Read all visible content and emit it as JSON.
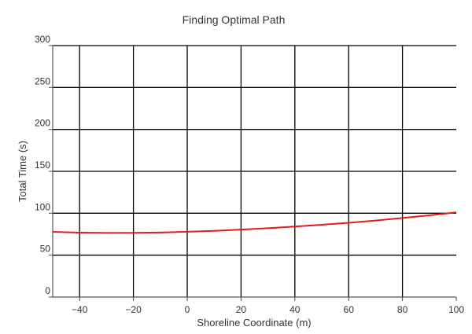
{
  "chart_data": {
    "type": "line",
    "title": "Finding Optimal Path",
    "xlabel": "Shoreline Coordinate (m)",
    "ylabel": "Total Time (s)",
    "xlim": [
      -50,
      100
    ],
    "ylim": [
      0,
      300
    ],
    "x_ticks": [
      -40,
      -20,
      0,
      20,
      40,
      60,
      80,
      100
    ],
    "y_ticks": [
      0,
      50,
      100,
      150,
      200,
      250,
      300
    ],
    "x_tick_labels": [
      "−40",
      "−20",
      "0",
      "20",
      "40",
      "60",
      "80",
      "100"
    ],
    "y_tick_labels": [
      "0",
      "50",
      "100",
      "150",
      "200",
      "250",
      "300"
    ],
    "grid": true,
    "grid_color": "#000000",
    "series": [
      {
        "color": "#e41a1c",
        "x": [
          -50,
          -40,
          -30,
          -20,
          -10,
          0,
          10,
          20,
          30,
          40,
          50,
          60,
          70,
          80,
          90,
          100
        ],
        "y": [
          77.8,
          76.9,
          76.5,
          76.6,
          77.0,
          77.9,
          79.0,
          80.5,
          82.2,
          84.1,
          86.3,
          88.6,
          91.3,
          94.3,
          97.5,
          101.0
        ]
      }
    ]
  }
}
